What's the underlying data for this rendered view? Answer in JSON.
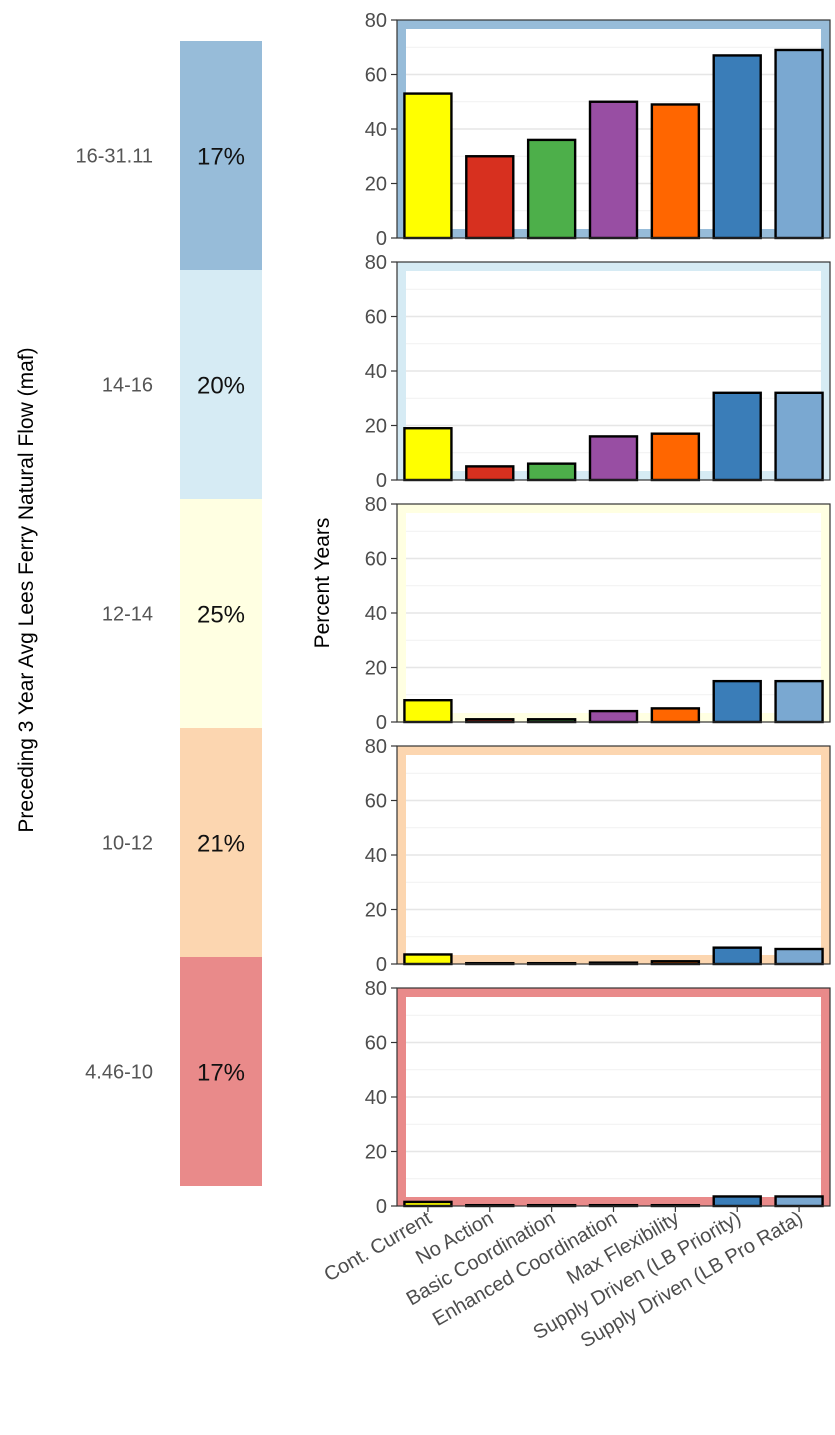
{
  "chart_data": {
    "type": "bar",
    "ylabel": "Percent Years",
    "strip_axis_label": "Preceding 3 Year Avg Lees Ferry Natural Flow (maf)",
    "ylim": [
      0,
      80
    ],
    "yticks": [
      "0",
      "20",
      "40",
      "60",
      "80"
    ],
    "grid": true,
    "categories": [
      "Cont. Current",
      "No Action",
      "Basic Coordination",
      "Enhanced Coordination",
      "Max Flexibility",
      "Supply Driven (LB Priority)",
      "Supply Driven (LB Pro Rata)"
    ],
    "bar_colors": [
      "#ffff00",
      "#d7301f",
      "#4daf4a",
      "#984ea3",
      "#ff6600",
      "#3a7db8",
      "#7aa8d1"
    ],
    "panels": [
      {
        "range_label": "16-31.11",
        "share_label": "17%",
        "panel_color": "#97bcd9",
        "values": [
          53,
          30,
          36,
          50,
          49,
          67,
          69
        ]
      },
      {
        "range_label": "14-16",
        "share_label": "20%",
        "panel_color": "#d6ebf4",
        "values": [
          19,
          5,
          6,
          16,
          17,
          32,
          32
        ]
      },
      {
        "range_label": "12-14",
        "share_label": "25%",
        "panel_color": "#ffffe2",
        "values": [
          8,
          1,
          1,
          4,
          5,
          15,
          15
        ]
      },
      {
        "range_label": "10-12",
        "share_label": "21%",
        "panel_color": "#fcd6b0",
        "values": [
          3.5,
          0.3,
          0.3,
          0.5,
          1,
          6,
          5.5
        ]
      },
      {
        "range_label": "4.46-10",
        "share_label": "17%",
        "panel_color": "#e98a8a",
        "values": [
          1.5,
          0.3,
          0.3,
          0.3,
          0.3,
          3.5,
          3.5
        ]
      }
    ]
  }
}
